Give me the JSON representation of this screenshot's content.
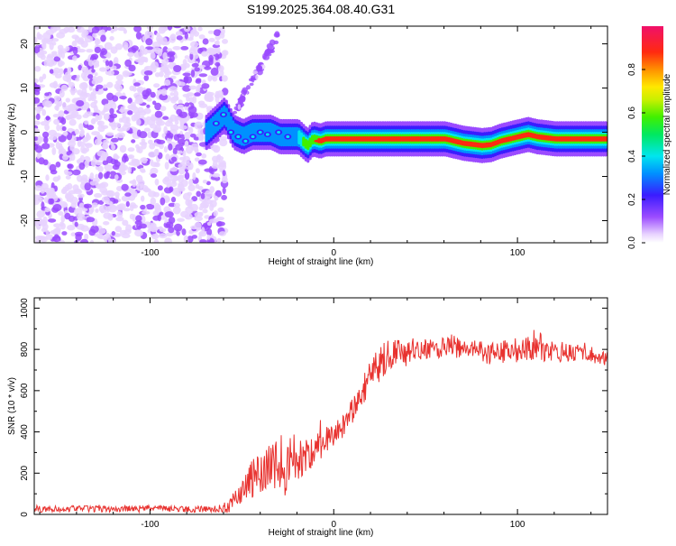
{
  "chart_data": [
    {
      "type": "heatmap",
      "title": "S199.2025.364.08.40.G31",
      "xlabel": "Height of straight line (km)",
      "ylabel": "Frequency (Hz)",
      "xlim": [
        -163,
        149
      ],
      "ylim": [
        -25,
        24
      ],
      "xticks": [
        -100,
        0,
        100
      ],
      "yticks": [
        -20,
        -10,
        0,
        10,
        20
      ],
      "xtick_labels": [
        "-100",
        "0",
        "100"
      ],
      "ytick_labels": [
        "-20",
        "-10",
        "0",
        "10",
        "20"
      ],
      "colorbar": {
        "label": "Normalized spectral amplitude",
        "range": [
          0,
          1
        ],
        "ticks": [
          0.0,
          0.2,
          0.4,
          0.6,
          0.8
        ],
        "tick_labels": [
          "0.0",
          "0.2",
          "0.4",
          "0.6",
          "0.8"
        ]
      },
      "ridge_trace": {
        "x": [
          -70,
          -65,
          -60,
          -55,
          -50,
          -45,
          -40,
          -35,
          -30,
          -25,
          -20,
          -15,
          -12,
          -8,
          -5,
          0,
          5,
          10,
          20,
          30,
          40,
          50,
          60,
          70,
          80,
          85,
          90,
          95,
          100,
          105,
          110,
          120,
          130,
          140,
          149
        ],
        "freq": [
          0,
          2,
          4,
          0,
          -1,
          0,
          0,
          0,
          -1,
          -1,
          -1,
          -3,
          -1.5,
          -2,
          -1.5,
          -1.5,
          -1.5,
          -1.5,
          -1.5,
          -1.5,
          -1.5,
          -1.5,
          -1.5,
          -2.5,
          -3,
          -2.8,
          -2,
          -1.5,
          -1,
          -0.5,
          -1,
          -1.5,
          -1.5,
          -1.5,
          -1.5
        ],
        "amplitude": [
          0.3,
          0.3,
          0.35,
          0.35,
          0.35,
          0.3,
          0.3,
          0.3,
          0.3,
          0.35,
          0.4,
          0.7,
          0.8,
          0.85,
          0.85,
          0.9,
          0.9,
          0.9,
          0.9,
          0.9,
          0.9,
          0.9,
          0.9,
          0.9,
          0.85,
          0.85,
          0.85,
          0.85,
          0.9,
          0.9,
          0.9,
          0.9,
          0.9,
          0.9,
          0.9
        ]
      },
      "noise_region_x": [
        -163,
        -63
      ]
    },
    {
      "type": "line",
      "xlabel": "Height of straight line (km)",
      "ylabel": "SNR (10 * v/v)",
      "xlim": [
        -163,
        149
      ],
      "ylim": [
        0,
        1050
      ],
      "xticks": [
        -100,
        0,
        100
      ],
      "yticks": [
        0,
        200,
        400,
        600,
        800,
        1000
      ],
      "xtick_labels": [
        "-100",
        "0",
        "100"
      ],
      "ytick_labels": [
        "0",
        "200",
        "400",
        "600",
        "800",
        "1000"
      ],
      "series": [
        {
          "name": "SNR",
          "color": "#e8322f",
          "x": [
            -163,
            -140,
            -120,
            -100,
            -80,
            -65,
            -58,
            -50,
            -45,
            -40,
            -35,
            -30,
            -25,
            -20,
            -15,
            -10,
            -5,
            0,
            5,
            10,
            15,
            20,
            25,
            30,
            35,
            40,
            45,
            50,
            55,
            60,
            65,
            70,
            75,
            80,
            85,
            90,
            95,
            100,
            105,
            110,
            115,
            120,
            125,
            130,
            135,
            140,
            145,
            149
          ],
          "y": [
            25,
            28,
            25,
            30,
            25,
            25,
            35,
            110,
            170,
            180,
            220,
            230,
            250,
            270,
            280,
            320,
            360,
            390,
            430,
            500,
            580,
            680,
            730,
            770,
            800,
            770,
            810,
            800,
            800,
            810,
            820,
            800,
            790,
            800,
            780,
            790,
            780,
            790,
            800,
            830,
            800,
            790,
            790,
            780,
            790,
            780,
            760,
            760
          ],
          "jitter": [
            15,
            15,
            15,
            15,
            15,
            15,
            30,
            60,
            100,
            110,
            130,
            150,
            160,
            110,
            90,
            80,
            70,
            60,
            60,
            60,
            70,
            80,
            90,
            80,
            70,
            60,
            60,
            50,
            50,
            50,
            60,
            50,
            50,
            50,
            60,
            60,
            60,
            70,
            60,
            80,
            60,
            50,
            50,
            50,
            50,
            40,
            40,
            40
          ]
        }
      ]
    }
  ]
}
